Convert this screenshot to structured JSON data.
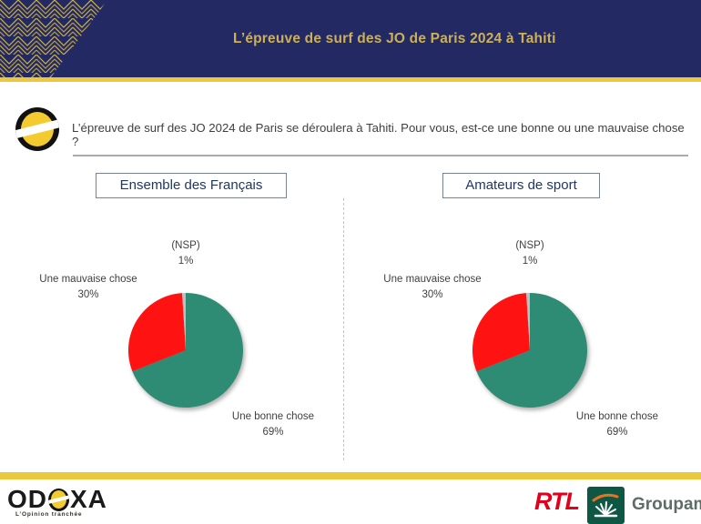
{
  "banner": {
    "title": "L’épreuve de surf des JO de Paris 2024 à Tahiti"
  },
  "question": {
    "text": "L’épreuve de surf des JO 2024 de Paris se déroulera à Tahiti. Pour vous, est-ce une bonne ou une mauvaise chose ?"
  },
  "chart_data": [
    {
      "type": "pie",
      "title": "Ensemble des Français",
      "start_angle_deg": 0,
      "clockwise": true,
      "slices": [
        {
          "label": "Une bonne chose",
          "value": 69,
          "display": "69%",
          "color": "#2E8B74"
        },
        {
          "label": "Une mauvaise chose",
          "value": 30,
          "display": "30%",
          "color": "#FE1312"
        },
        {
          "label": "(NSP)",
          "value": 1,
          "display": "1%",
          "color": "#BFBFBF"
        }
      ]
    },
    {
      "type": "pie",
      "title": "Amateurs de sport",
      "start_angle_deg": 0,
      "clockwise": true,
      "slices": [
        {
          "label": "Une bonne chose",
          "value": 69,
          "display": "69%",
          "color": "#2E8B74"
        },
        {
          "label": "Une mauvaise chose",
          "value": 30,
          "display": "30%",
          "color": "#FE1312"
        },
        {
          "label": "(NSP)",
          "value": 1,
          "display": "1%",
          "color": "#BFBFBF"
        }
      ]
    }
  ],
  "footer": {
    "odoxa_left": "OD",
    "odoxa_right": "XA",
    "odoxa_tagline": "L’Opinion tranchée",
    "rtl_label": "RTL",
    "groupama_label": "Groupama"
  },
  "colors": {
    "navy": "#232A63",
    "gold": "#ECC83D",
    "good_green": "#2E8B74",
    "bad_red": "#FE1312",
    "nsp_gray": "#BFBFBF",
    "rtl_red": "#E2001A",
    "groupama_green": "#0E5744"
  }
}
